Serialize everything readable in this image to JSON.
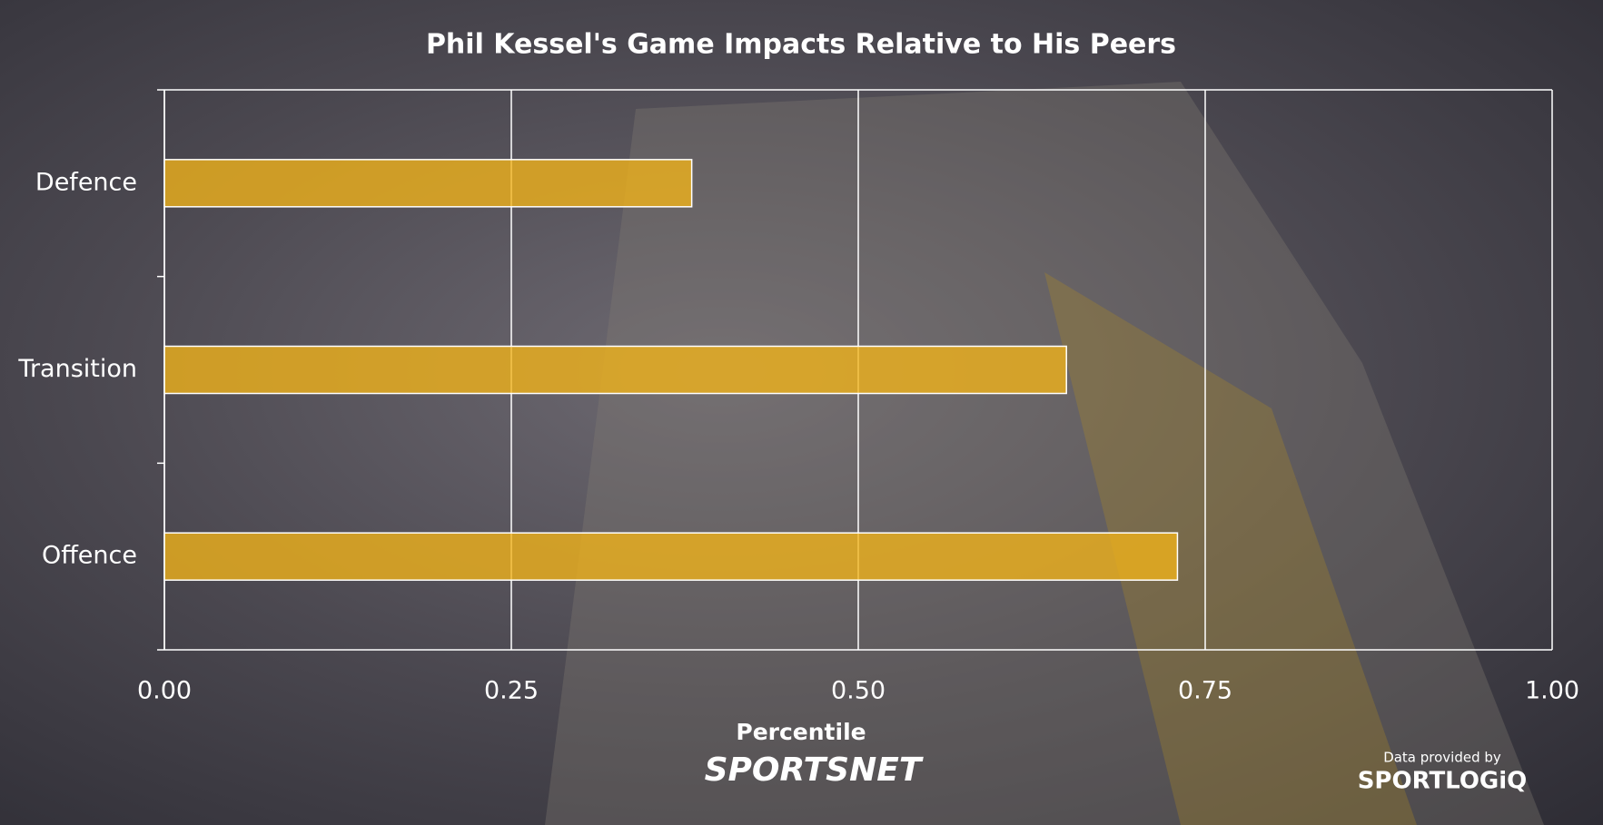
{
  "chart_data": {
    "type": "bar",
    "orientation": "horizontal",
    "title": "Phil Kessel's Game Impacts Relative to His Peers",
    "categories": [
      "Defence",
      "Transition",
      "Offence"
    ],
    "values": [
      0.38,
      0.65,
      0.73
    ],
    "color": "#f2b31a",
    "xlabel": "Percentile",
    "xlim": [
      0,
      1
    ],
    "xticks": [
      {
        "value": 0,
        "label": "0.00"
      },
      {
        "value": 0.25,
        "label": "0.25"
      },
      {
        "value": 0.5,
        "label": "0.50"
      },
      {
        "value": 0.75,
        "label": "0.75"
      },
      {
        "value": 1,
        "label": "1.00"
      }
    ],
    "grid": true,
    "logo": "SPORTSNET",
    "credit": "Data provided by",
    "credit_logo": "SPORTLOGiQ"
  }
}
